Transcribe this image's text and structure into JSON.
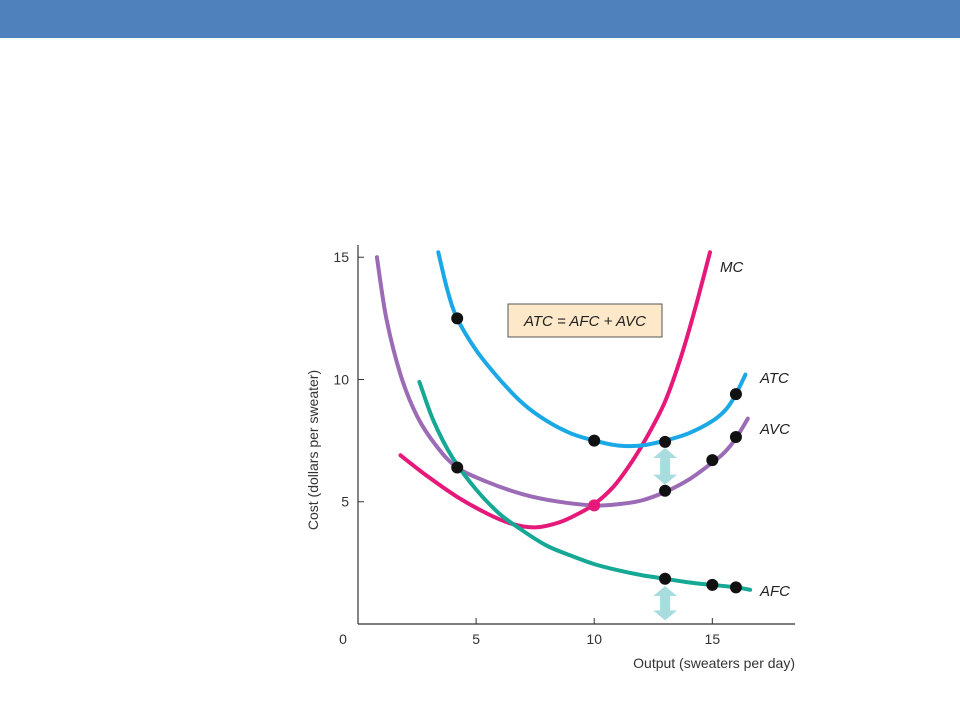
{
  "header": {
    "bar_color": "#4f81bd"
  },
  "chart_data": {
    "type": "line",
    "xlabel": "Output (sweaters per day)",
    "ylabel": "Cost (dollars per sweater)",
    "xlim": [
      0,
      18.5
    ],
    "ylim": [
      0,
      15.5
    ],
    "x_ticks": [
      0,
      5,
      10,
      15
    ],
    "y_ticks": [
      5,
      10,
      15
    ],
    "origin_label": "0",
    "annotation": "ATC = AFC + AVC",
    "annotation_bg": "#fde9c9",
    "gap_arrow_color": "#a8dde0",
    "series": [
      {
        "name": "MC",
        "color": "#e6197a",
        "points": [
          [
            1.8,
            6.9
          ],
          [
            3,
            6.0
          ],
          [
            4.2,
            5.2
          ],
          [
            5.5,
            4.5
          ],
          [
            6.5,
            4.1
          ],
          [
            7.5,
            3.95
          ],
          [
            8.5,
            4.15
          ],
          [
            9.3,
            4.5
          ],
          [
            10,
            4.9
          ],
          [
            10.8,
            5.6
          ],
          [
            11.5,
            6.5
          ],
          [
            12.2,
            7.6
          ],
          [
            13,
            9.1
          ],
          [
            13.7,
            11.0
          ],
          [
            14.3,
            13.0
          ],
          [
            14.9,
            15.2
          ]
        ]
      },
      {
        "name": "ATC",
        "color": "#1aa9e6",
        "points": [
          [
            3.4,
            15.2
          ],
          [
            3.8,
            13.6
          ],
          [
            4.2,
            12.5
          ],
          [
            5,
            11.2
          ],
          [
            6,
            10.0
          ],
          [
            7,
            9.0
          ],
          [
            8,
            8.3
          ],
          [
            9,
            7.8
          ],
          [
            10,
            7.5
          ],
          [
            11,
            7.3
          ],
          [
            12,
            7.3
          ],
          [
            13,
            7.5
          ],
          [
            14,
            7.8
          ],
          [
            15,
            8.3
          ],
          [
            15.6,
            8.8
          ],
          [
            16,
            9.4
          ],
          [
            16.4,
            10.2
          ]
        ]
      },
      {
        "name": "AVC",
        "color": "#9b6bb5",
        "points": [
          [
            0.8,
            15.0
          ],
          [
            1.2,
            12.5
          ],
          [
            1.8,
            10.2
          ],
          [
            2.5,
            8.5
          ],
          [
            3.3,
            7.3
          ],
          [
            4.2,
            6.4
          ],
          [
            5.5,
            5.8
          ],
          [
            7,
            5.3
          ],
          [
            8.5,
            5.0
          ],
          [
            10,
            4.85
          ],
          [
            11,
            4.9
          ],
          [
            12,
            5.05
          ],
          [
            13,
            5.4
          ],
          [
            14,
            5.9
          ],
          [
            15,
            6.6
          ],
          [
            15.5,
            7.0
          ],
          [
            16,
            7.6
          ],
          [
            16.5,
            8.4
          ]
        ]
      },
      {
        "name": "AFC",
        "color": "#14a895",
        "points": [
          [
            2.6,
            9.9
          ],
          [
            3.2,
            8.3
          ],
          [
            4,
            6.8
          ],
          [
            5,
            5.5
          ],
          [
            6,
            4.5
          ],
          [
            7,
            3.8
          ],
          [
            8,
            3.2
          ],
          [
            9,
            2.8
          ],
          [
            10,
            2.45
          ],
          [
            11,
            2.2
          ],
          [
            12,
            2.0
          ],
          [
            13,
            1.85
          ],
          [
            14,
            1.7
          ],
          [
            15,
            1.6
          ],
          [
            16,
            1.5
          ],
          [
            16.6,
            1.4
          ]
        ]
      }
    ],
    "points_marked": [
      {
        "x": 4.2,
        "y": 12.5,
        "color": "#111111"
      },
      {
        "x": 10,
        "y": 7.5,
        "color": "#111111"
      },
      {
        "x": 13,
        "y": 7.45,
        "color": "#111111"
      },
      {
        "x": 16,
        "y": 9.4,
        "color": "#111111"
      },
      {
        "x": 4.2,
        "y": 6.4,
        "color": "#111111"
      },
      {
        "x": 13,
        "y": 5.45,
        "color": "#111111"
      },
      {
        "x": 15,
        "y": 6.7,
        "color": "#111111"
      },
      {
        "x": 16,
        "y": 7.65,
        "color": "#111111"
      },
      {
        "x": 10,
        "y": 4.85,
        "color": "#e6197a"
      },
      {
        "x": 13,
        "y": 1.85,
        "color": "#111111"
      },
      {
        "x": 15,
        "y": 1.6,
        "color": "#111111"
      },
      {
        "x": 16,
        "y": 1.5,
        "color": "#111111"
      }
    ],
    "gap_arrows": [
      {
        "x": 13,
        "y_from": 5.7,
        "y_to": 7.2
      },
      {
        "x": 13,
        "y_from": 0.15,
        "y_to": 1.55
      }
    ]
  }
}
